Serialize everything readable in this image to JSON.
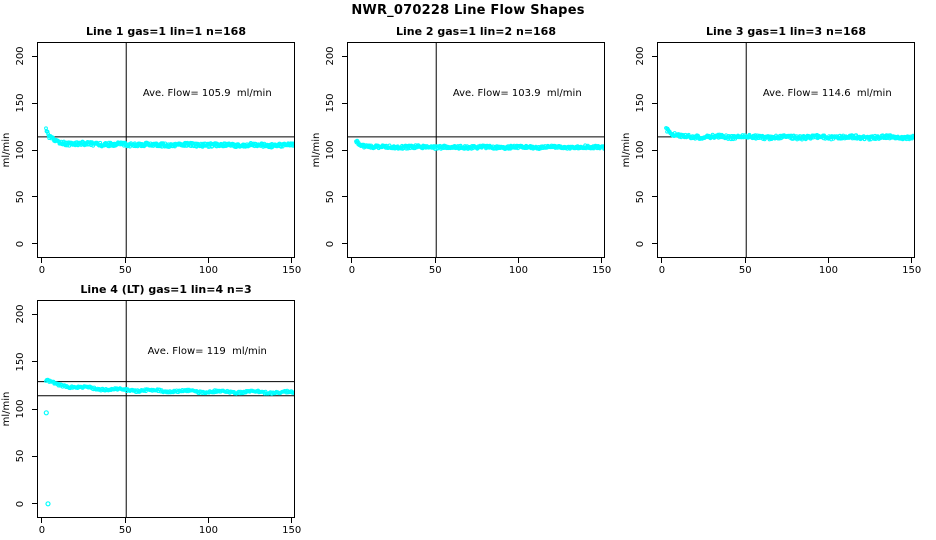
{
  "figure": {
    "title": "NWR_070228  Line Flow Shapes",
    "background_color": "#ffffff",
    "point_color": "#00ffff",
    "line_color": "#000000"
  },
  "chart_data": [
    {
      "type": "scatter",
      "title": "Line 1 gas=1 lin=1 n=168",
      "annotation": "Ave. Flow= 105.9  ml/min",
      "ave_flow": 105.9,
      "gas": 1,
      "lin": 1,
      "n": 168,
      "ylabel": "ml/min",
      "xticks": [
        0,
        50,
        100,
        150
      ],
      "yticks": [
        0,
        50,
        100,
        150,
        200
      ],
      "xlim": [
        -3,
        152
      ],
      "ylim": [
        -15,
        215
      ],
      "vline_x": 50,
      "hlines": [
        115
      ],
      "trend": [
        [
          2,
          122
        ],
        [
          4,
          114
        ],
        [
          8,
          110
        ],
        [
          15,
          108
        ],
        [
          40,
          107
        ],
        [
          90,
          106.5
        ],
        [
          151,
          106
        ]
      ],
      "n_points": 460,
      "jitter": 2.0,
      "wiggle": 0.5,
      "outliers": [],
      "grid": false,
      "legend": false
    },
    {
      "type": "scatter",
      "title": "Line 2 gas=1 lin=2 n=168",
      "annotation": "Ave. Flow= 103.9  ml/min",
      "ave_flow": 103.9,
      "gas": 1,
      "lin": 2,
      "n": 168,
      "ylabel": "ml/min",
      "xticks": [
        0,
        50,
        100,
        150
      ],
      "yticks": [
        0,
        50,
        100,
        150,
        200
      ],
      "xlim": [
        -3,
        152
      ],
      "ylim": [
        -15,
        215
      ],
      "vline_x": 50,
      "hlines": [
        115
      ],
      "trend": [
        [
          2,
          110
        ],
        [
          5,
          106
        ],
        [
          12,
          104.5
        ],
        [
          60,
          104
        ],
        [
          151,
          104
        ]
      ],
      "n_points": 460,
      "jitter": 1.7,
      "wiggle": 0.4,
      "outliers": [],
      "grid": false,
      "legend": false
    },
    {
      "type": "scatter",
      "title": "Line 3 gas=1 lin=3 n=168",
      "annotation": "Ave. Flow= 114.6  ml/min",
      "ave_flow": 114.6,
      "gas": 1,
      "lin": 3,
      "n": 168,
      "ylabel": "ml/min",
      "xticks": [
        0,
        50,
        100,
        150
      ],
      "yticks": [
        0,
        50,
        100,
        150,
        200
      ],
      "xlim": [
        -3,
        152
      ],
      "ylim": [
        -15,
        215
      ],
      "vline_x": 50,
      "hlines": [
        115
      ],
      "trend": [
        [
          2,
          124
        ],
        [
          5,
          118
        ],
        [
          12,
          115.5
        ],
        [
          50,
          114.8
        ],
        [
          151,
          114.5
        ]
      ],
      "n_points": 460,
      "jitter": 2.0,
      "wiggle": 0.6,
      "outliers": [],
      "grid": false,
      "legend": false
    },
    {
      "type": "scatter",
      "title": "Line 4 (LT) gas=1 lin=4 n=3",
      "annotation": "Ave. Flow= 119  ml/min",
      "ave_flow": 119,
      "gas": 1,
      "lin": 4,
      "n": 3,
      "ylabel": "ml/min",
      "xticks": [
        0,
        50,
        100,
        150
      ],
      "yticks": [
        0,
        50,
        100,
        150,
        200
      ],
      "xlim": [
        -3,
        152
      ],
      "ylim": [
        -15,
        215
      ],
      "vline_x": 50,
      "hlines": [
        130,
        115
      ],
      "trend": [
        [
          2,
          131
        ],
        [
          8,
          127
        ],
        [
          20,
          124
        ],
        [
          50,
          121
        ],
        [
          90,
          119.5
        ],
        [
          151,
          118.5
        ]
      ],
      "n_points": 300,
      "jitter": 1.2,
      "wiggle": 0.9,
      "outliers": [
        [
          2,
          97
        ],
        [
          3,
          1
        ]
      ],
      "grid": false,
      "legend": false
    }
  ]
}
